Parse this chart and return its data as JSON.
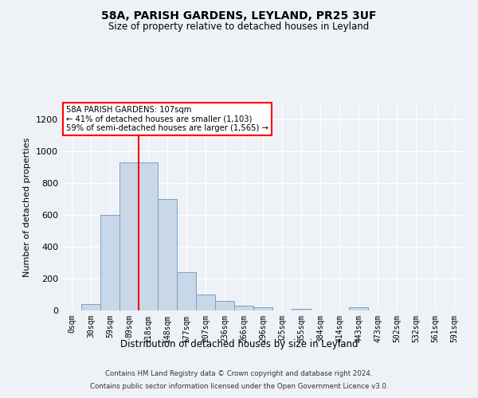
{
  "title1": "58A, PARISH GARDENS, LEYLAND, PR25 3UF",
  "title2": "Size of property relative to detached houses in Leyland",
  "xlabel": "Distribution of detached houses by size in Leyland",
  "ylabel": "Number of detached properties",
  "bar_labels": [
    "0sqm",
    "30sqm",
    "59sqm",
    "89sqm",
    "118sqm",
    "148sqm",
    "177sqm",
    "207sqm",
    "236sqm",
    "266sqm",
    "296sqm",
    "325sqm",
    "355sqm",
    "384sqm",
    "414sqm",
    "443sqm",
    "473sqm",
    "502sqm",
    "532sqm",
    "561sqm",
    "591sqm"
  ],
  "bar_values": [
    0,
    40,
    600,
    930,
    930,
    700,
    240,
    100,
    60,
    30,
    18,
    0,
    10,
    0,
    0,
    20,
    0,
    0,
    0,
    0,
    0
  ],
  "bar_color": "#c8d8e8",
  "bar_edge_color": "#7aa0c0",
  "red_line_x": 3.5,
  "ylim": [
    0,
    1300
  ],
  "yticks": [
    0,
    200,
    400,
    600,
    800,
    1000,
    1200
  ],
  "annotation_line1": "58A PARISH GARDENS: 107sqm",
  "annotation_line2": "← 41% of detached houses are smaller (1,103)",
  "annotation_line3": "59% of semi-detached houses are larger (1,565) →",
  "footer1": "Contains HM Land Registry data © Crown copyright and database right 2024.",
  "footer2": "Contains public sector information licensed under the Open Government Licence v3.0.",
  "bg_color": "#eef2f7",
  "plot_bg_color": "#eef2f7"
}
